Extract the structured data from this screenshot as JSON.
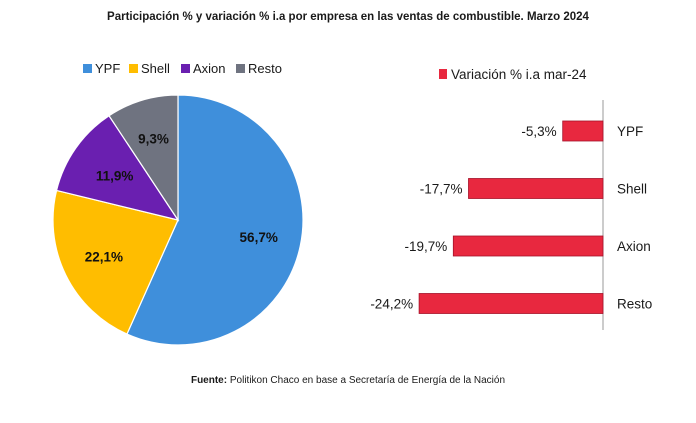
{
  "title": "Participación % y variación % i.a por empresa en las ventas de combustible. Marzo 2024",
  "source": {
    "label": "Fuente:",
    "text": "Politikon Chaco en base a Secretaría de Energía de la Nación"
  },
  "colors": {
    "ypf": "#3f8fdb",
    "shell": "#ffbd00",
    "axion": "#6a1fb0",
    "resto": "#6f7380",
    "variation": "#e8283f"
  },
  "chart_data": [
    {
      "type": "pie",
      "legend_position": "top",
      "slices": [
        {
          "label": "YPF",
          "value": 56.7,
          "display": "56,7%"
        },
        {
          "label": "Shell",
          "value": 22.1,
          "display": "22,1%"
        },
        {
          "label": "Axion",
          "value": 11.9,
          "display": "11,9%"
        },
        {
          "label": "Resto",
          "value": 9.3,
          "display": "9,3%"
        }
      ]
    },
    {
      "type": "bar",
      "orientation": "horizontal",
      "legend_position": "top",
      "series": [
        {
          "name": "Variación % i.a mar-24",
          "values": [
            -5.3,
            -17.7,
            -19.7,
            -24.2
          ]
        }
      ],
      "categories": [
        "YPF",
        "Shell",
        "Axion",
        "Resto"
      ],
      "value_labels": [
        "-5,3%",
        "-17,7%",
        "-19,7%",
        "-24,2%"
      ],
      "xlim": [
        -25,
        0
      ],
      "grid": false
    }
  ]
}
